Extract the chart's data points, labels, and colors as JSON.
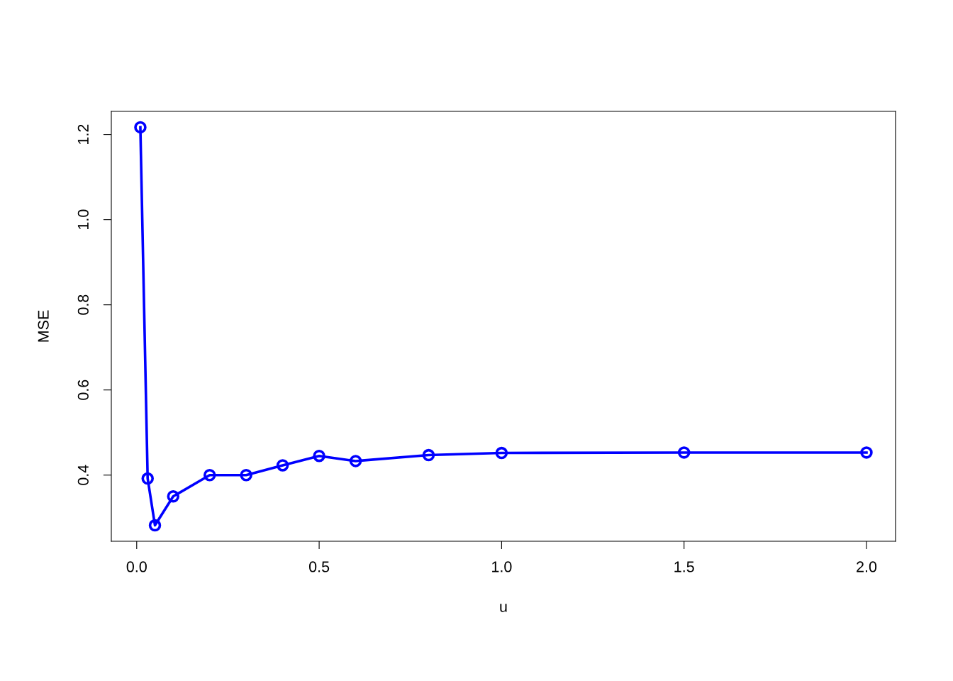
{
  "chart_data": {
    "type": "line",
    "xlabel": "u",
    "ylabel": "MSE",
    "x": [
      0.01,
      0.03,
      0.05,
      0.1,
      0.2,
      0.3,
      0.4,
      0.5,
      0.6,
      0.8,
      1.0,
      1.5,
      2.0
    ],
    "series": [
      {
        "color": "#0000ff",
        "values": [
          1.217,
          0.392,
          0.282,
          0.35,
          0.4,
          0.4,
          0.423,
          0.445,
          0.433,
          0.447,
          0.452,
          0.453,
          0.453
        ]
      }
    ],
    "xlim": [
      -0.0696,
      2.0796
    ],
    "ylim": [
      0.2446,
      1.2544
    ],
    "xticks": [
      {
        "value": 0,
        "label": "0.0"
      },
      0.5,
      {
        "value": 1,
        "label": "1.0"
      },
      1.5,
      {
        "value": 2,
        "label": "2.0"
      }
    ],
    "yticks": [
      0.4,
      0.6,
      0.8,
      {
        "value": 1,
        "label": "1.0"
      },
      1.2
    ],
    "marker": "circle",
    "line_style": "solid",
    "grid": false
  }
}
